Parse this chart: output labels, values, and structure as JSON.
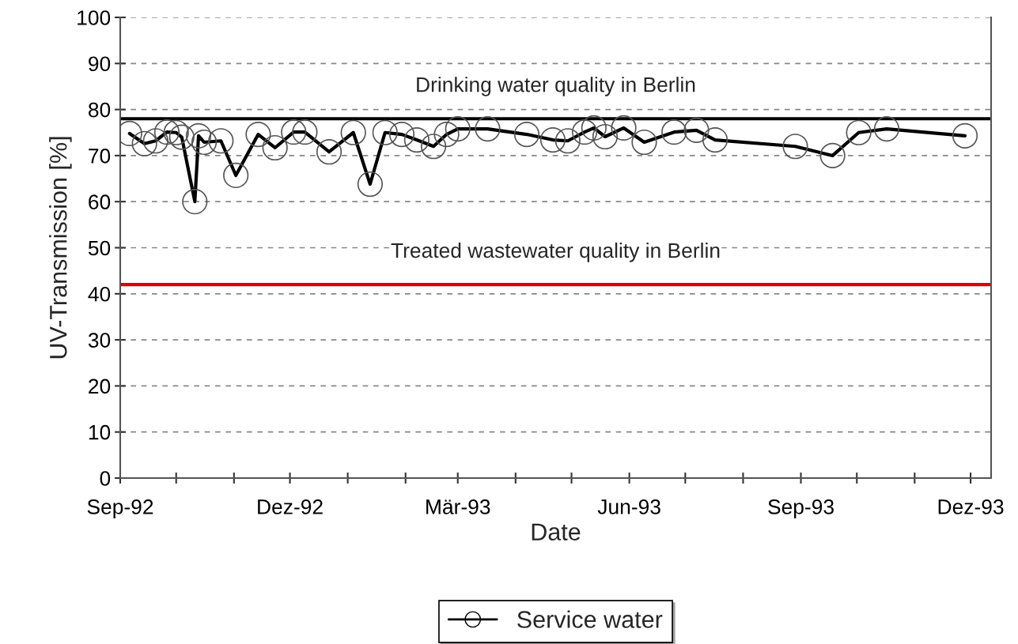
{
  "chart_data": {
    "type": "line",
    "xlabel": "Date",
    "ylabel": "UV-Transmission [%]",
    "x": [
      "1992-09-06",
      "1992-09-14",
      "1992-09-20",
      "1992-09-26",
      "1992-10-01",
      "1992-10-04",
      "1992-10-11",
      "1992-10-13",
      "1992-10-16",
      "1992-10-25",
      "1992-11-02",
      "1992-11-14",
      "1992-11-23",
      "1992-12-03",
      "1992-12-09",
      "1992-12-22",
      "1993-01-04",
      "1993-01-13",
      "1993-01-21",
      "1993-01-30",
      "1993-02-07",
      "1993-02-16",
      "1993-02-23",
      "1993-03-01",
      "1993-03-17",
      "1993-04-07",
      "1993-04-21",
      "1993-04-29",
      "1993-05-08",
      "1993-05-13",
      "1993-05-19",
      "1993-05-29",
      "1993-06-09",
      "1993-06-25",
      "1993-07-07",
      "1993-07-17",
      "1993-08-29",
      "1993-09-18",
      "1993-10-02",
      "1993-10-17",
      "1993-11-28"
    ],
    "series": [
      {
        "name": "Service water",
        "color": "#000000",
        "values": [
          74.8,
          72.6,
          73.2,
          75.1,
          75,
          74,
          60,
          74.3,
          72.9,
          73.2,
          65.7,
          74.6,
          71.7,
          75.1,
          75.1,
          70.8,
          75,
          63.8,
          75,
          74.6,
          73.4,
          72,
          74.6,
          75.8,
          75.8,
          74.6,
          73.4,
          73.2,
          75.1,
          76,
          74.1,
          76,
          72.9,
          75.1,
          75.5,
          73.4,
          72,
          70,
          75,
          75.8,
          74.3
        ]
      }
    ],
    "xlim": [
      "1992-09-01",
      "1993-12-12"
    ],
    "xticks": [
      {
        "value": "1992-09-01",
        "label": "Sep-92"
      },
      {
        "value": "1992-10-01",
        "label": null
      },
      {
        "value": "1992-11-01",
        "label": null
      },
      {
        "value": "1992-12-01",
        "label": "Dez-92"
      },
      {
        "value": "1993-01-01",
        "label": null
      },
      {
        "value": "1993-02-01",
        "label": null
      },
      {
        "value": "1993-03-01",
        "label": "Mär-93"
      },
      {
        "value": "1993-04-01",
        "label": null
      },
      {
        "value": "1993-05-01",
        "label": null
      },
      {
        "value": "1993-06-01",
        "label": "Jun-93"
      },
      {
        "value": "1993-07-01",
        "label": null
      },
      {
        "value": "1993-08-01",
        "label": null
      },
      {
        "value": "1993-09-01",
        "label": "Sep-93"
      },
      {
        "value": "1993-10-01",
        "label": null
      },
      {
        "value": "1993-11-01",
        "label": null
      },
      {
        "value": "1993-12-01",
        "label": "Dez-93"
      }
    ],
    "ylim": [
      0,
      100
    ],
    "yticks": [
      0,
      10,
      20,
      30,
      40,
      50,
      60,
      70,
      80,
      90,
      100
    ],
    "ref_lines": [
      {
        "axis": "y",
        "value": 78,
        "label": "Drinking water quality in Berlin",
        "color": "#000000"
      },
      {
        "axis": "y",
        "value": 42,
        "label": "Treated wastewater quality in Berlin",
        "color": "#dd0000"
      }
    ],
    "grid": "y",
    "legend": "bottom",
    "marker": "circle",
    "line_style": "solid"
  }
}
